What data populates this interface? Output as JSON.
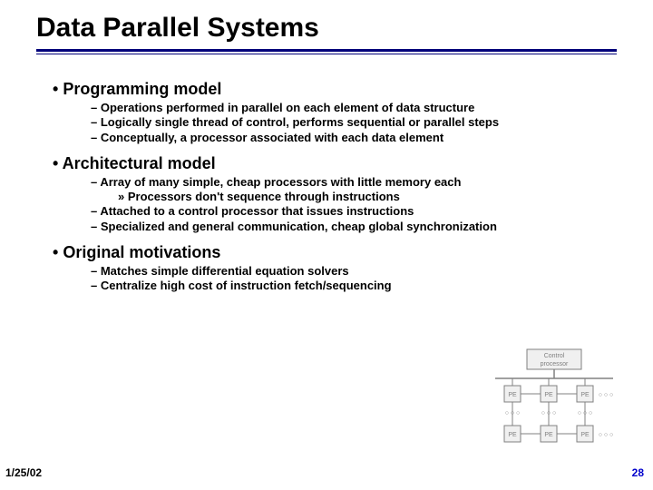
{
  "title": "Data Parallel Systems",
  "sections": [
    {
      "heading": "Programming model",
      "items": [
        "Operations performed in parallel on each element of data structure",
        "Logically single thread of control, performs sequential or parallel steps",
        "Conceptually, a processor associated with each data element"
      ]
    },
    {
      "heading": "Architectural model",
      "items": [
        "Array of many simple, cheap processors with little memory each",
        "Attached to a control processor that issues instructions",
        "Specialized and general communication, cheap global synchronization"
      ],
      "subitems_after_first": [
        "Processors don't sequence through instructions"
      ]
    },
    {
      "heading": "Original motivations",
      "items": [
        "Matches simple differential equation solvers",
        "Centralize high cost of instruction fetch/sequencing"
      ]
    }
  ],
  "footer": {
    "date": "1/25/02",
    "page": "28"
  },
  "diagram": {
    "control_label": "Control\nprocessor",
    "pe_label": "PE",
    "dots": "○ ○ ○",
    "colors": {
      "box_border": "#808080",
      "box_fill": "#f0f0f0",
      "text": "#808080",
      "bus": "#808080"
    },
    "layout": {
      "cols": 3,
      "rows": 2,
      "control_width": 60,
      "control_height": 22,
      "pe_size": 18,
      "col_gap": 30,
      "row_gap": 26
    }
  }
}
